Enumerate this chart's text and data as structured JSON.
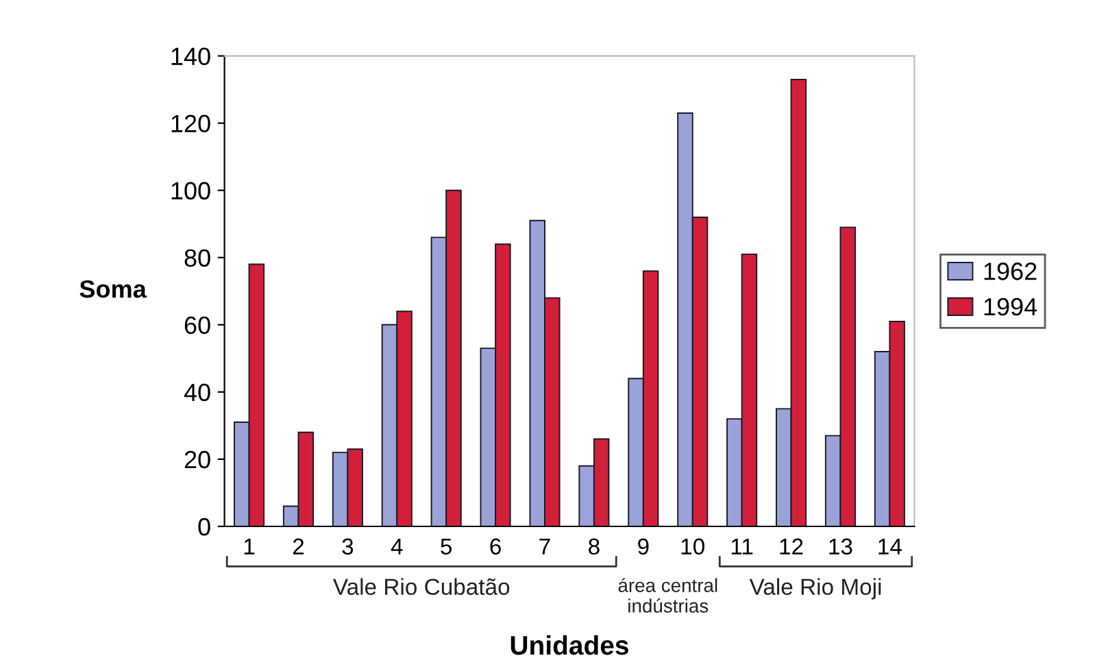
{
  "chart_data": {
    "type": "bar",
    "xlabel": "Unidades",
    "ylabel": "Soma",
    "categories": [
      "1",
      "2",
      "3",
      "4",
      "5",
      "6",
      "7",
      "8",
      "9",
      "10",
      "11",
      "12",
      "13",
      "14"
    ],
    "series": [
      {
        "name": "1962",
        "color": "#9aa3d8",
        "values": [
          31,
          6,
          22,
          60,
          86,
          53,
          91,
          18,
          44,
          123,
          32,
          35,
          27,
          52
        ]
      },
      {
        "name": "1994",
        "color": "#d2203a",
        "values": [
          78,
          28,
          23,
          64,
          100,
          84,
          68,
          26,
          76,
          92,
          81,
          133,
          89,
          61
        ]
      }
    ],
    "annotations": [
      "Vale Rio Cubatão",
      "área central\nindústrias",
      "Vale Rio Moji"
    ],
    "ylim": [
      0,
      140
    ],
    "yticks": [
      0,
      20,
      40,
      60,
      80,
      100,
      120,
      140
    ],
    "grid": false,
    "legend": "right"
  }
}
